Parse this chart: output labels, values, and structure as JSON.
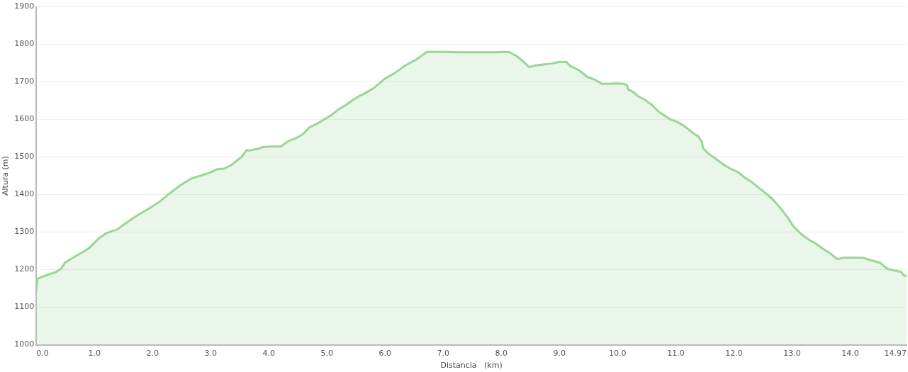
{
  "chart_data": {
    "type": "area",
    "xlabel": "Distancia   (km)",
    "ylabel": "Altura (m)",
    "xlim": [
      0,
      14.97
    ],
    "ylim": [
      1000,
      1900
    ],
    "xticks": [
      {
        "value": 0,
        "label": "0.0"
      },
      {
        "value": 1,
        "label": "1.0"
      },
      {
        "value": 2,
        "label": "2.0"
      },
      {
        "value": 3,
        "label": "3.0"
      },
      {
        "value": 4,
        "label": "4.0"
      },
      {
        "value": 5,
        "label": "5.0"
      },
      {
        "value": 6,
        "label": "6.0"
      },
      {
        "value": 7,
        "label": "7.0"
      },
      {
        "value": 8,
        "label": "8.0"
      },
      {
        "value": 9,
        "label": "9.0"
      },
      {
        "value": 10,
        "label": "10.0"
      },
      {
        "value": 11,
        "label": "11.0"
      },
      {
        "value": 12,
        "label": "12.0"
      },
      {
        "value": 13,
        "label": "13.0"
      },
      {
        "value": 14,
        "label": "14.0"
      },
      14.97
    ],
    "yticks": [
      1000,
      1100,
      1200,
      1300,
      1400,
      1500,
      1600,
      1700,
      1800,
      1900
    ],
    "grid": "y",
    "marker": "none",
    "series": [
      {
        "color": "#99d699",
        "x": [
          0,
          0.02,
          0.1,
          0.34,
          0.43,
          0.49,
          0.59,
          0.71,
          0.9,
          1.08,
          1.2,
          1.39,
          1.57,
          1.75,
          1.94,
          2.12,
          2.31,
          2.49,
          2.67,
          2.86,
          2.98,
          3.1,
          3.23,
          3.35,
          3.47,
          3.53,
          3.62,
          3.66,
          3.84,
          3.9,
          4.09,
          4.21,
          4.33,
          4.45,
          4.58,
          4.7,
          4.82,
          4.94,
          5.07,
          5.19,
          5.31,
          5.43,
          5.56,
          5.62,
          5.8,
          5.99,
          6.17,
          6.36,
          6.54,
          6.72,
          7.0,
          7.28,
          7.64,
          7.89,
          8.13,
          8.26,
          8.38,
          8.48,
          8.56,
          8.75,
          8.87,
          8.99,
          9.12,
          9.18,
          9.3,
          9.36,
          9.48,
          9.61,
          9.73,
          9.85,
          9.98,
          10.1,
          10.16,
          10.18,
          10.28,
          10.34,
          10.47,
          10.59,
          10.71,
          10.9,
          11.02,
          11.14,
          11.33,
          11.39,
          11.45,
          11.47,
          11.57,
          11.69,
          11.82,
          11.94,
          12.06,
          12.18,
          12.31,
          12.43,
          12.55,
          12.67,
          12.8,
          12.92,
          13.02,
          13.17,
          13.29,
          13.41,
          13.53,
          13.66,
          13.78,
          13.9,
          14.02,
          14.21,
          14.29,
          14.52,
          14.64,
          14.76,
          14.88,
          14.92,
          14.97
        ],
        "values": [
          1144,
          1176,
          1181,
          1194,
          1203,
          1218,
          1228,
          1239,
          1256,
          1284,
          1297,
          1307,
          1327,
          1346,
          1363,
          1381,
          1405,
          1426,
          1443,
          1452,
          1458,
          1467,
          1469,
          1478,
          1493,
          1500,
          1519,
          1517,
          1523,
          1527,
          1528,
          1528,
          1542,
          1549,
          1560,
          1579,
          1588,
          1599,
          1611,
          1626,
          1637,
          1650,
          1663,
          1667,
          1683,
          1708,
          1724,
          1745,
          1760,
          1780,
          1780,
          1779,
          1779,
          1779,
          1780,
          1769,
          1754,
          1739,
          1743,
          1747,
          1749,
          1753,
          1753,
          1743,
          1734,
          1728,
          1713,
          1706,
          1695,
          1695,
          1696,
          1695,
          1691,
          1680,
          1672,
          1663,
          1652,
          1639,
          1620,
          1601,
          1594,
          1583,
          1560,
          1555,
          1540,
          1523,
          1508,
          1495,
          1480,
          1469,
          1461,
          1446,
          1433,
          1418,
          1403,
          1387,
          1364,
          1340,
          1316,
          1293,
          1280,
          1269,
          1256,
          1243,
          1228,
          1232,
          1232,
          1232,
          1228,
          1218,
          1202,
          1198,
          1194,
          1185,
          1183
        ]
      }
    ]
  }
}
